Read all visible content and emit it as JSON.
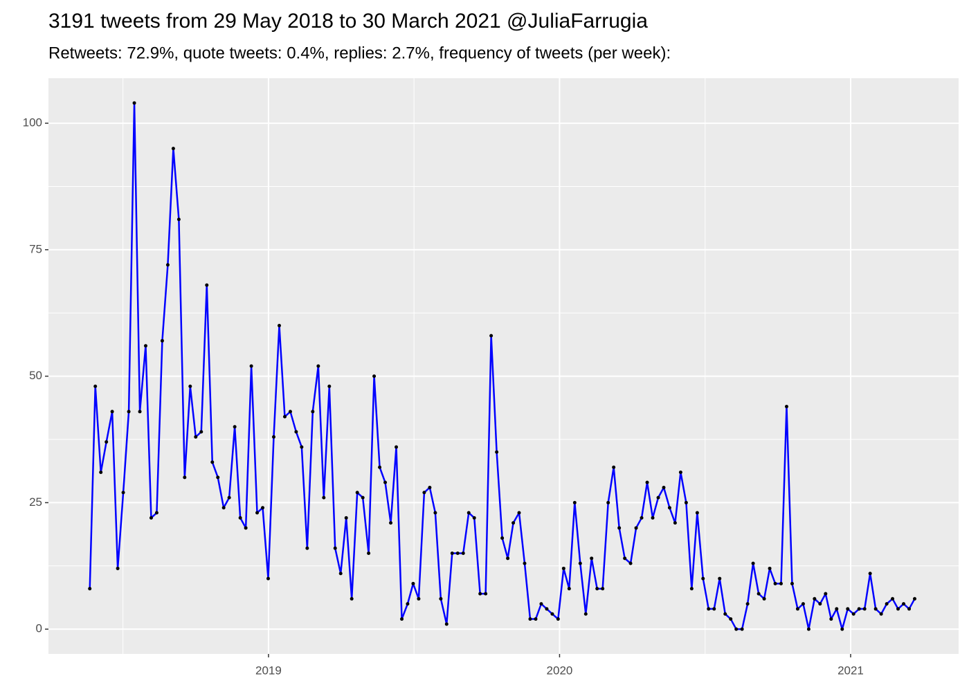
{
  "chart_data": {
    "type": "line",
    "title": "3191 tweets from 29 May 2018 to 30 March 2021 @JuliaFarrugia",
    "subtitle": "Retweets: 72.9%, quote tweets: 0.4%, replies: 2.7%, frequency of tweets (per week):",
    "x": [
      2018.386,
      2018.405,
      2018.424,
      2018.443,
      2018.463,
      2018.482,
      2018.501,
      2018.52,
      2018.539,
      2018.558,
      2018.578,
      2018.597,
      2018.616,
      2018.635,
      2018.654,
      2018.673,
      2018.692,
      2018.712,
      2018.731,
      2018.75,
      2018.769,
      2018.788,
      2018.807,
      2018.826,
      2018.846,
      2018.865,
      2018.884,
      2018.903,
      2018.922,
      2018.941,
      2018.961,
      2018.98,
      2018.999,
      2019.018,
      2019.037,
      2019.056,
      2019.075,
      2019.095,
      2019.114,
      2019.133,
      2019.152,
      2019.171,
      2019.19,
      2019.209,
      2019.229,
      2019.248,
      2019.267,
      2019.286,
      2019.305,
      2019.324,
      2019.344,
      2019.363,
      2019.382,
      2019.401,
      2019.42,
      2019.439,
      2019.458,
      2019.478,
      2019.497,
      2019.516,
      2019.535,
      2019.554,
      2019.573,
      2019.592,
      2019.612,
      2019.631,
      2019.65,
      2019.669,
      2019.688,
      2019.707,
      2019.727,
      2019.746,
      2019.765,
      2019.784,
      2019.803,
      2019.822,
      2019.841,
      2019.861,
      2019.88,
      2019.899,
      2019.918,
      2019.937,
      2019.956,
      2019.975,
      2019.995,
      2020.014,
      2020.033,
      2020.052,
      2020.071,
      2020.09,
      2020.11,
      2020.129,
      2020.148,
      2020.167,
      2020.186,
      2020.205,
      2020.224,
      2020.244,
      2020.263,
      2020.282,
      2020.301,
      2020.32,
      2020.339,
      2020.358,
      2020.378,
      2020.397,
      2020.416,
      2020.435,
      2020.454,
      2020.473,
      2020.493,
      2020.512,
      2020.531,
      2020.55,
      2020.569,
      2020.588,
      2020.607,
      2020.627,
      2020.646,
      2020.665,
      2020.684,
      2020.703,
      2020.722,
      2020.741,
      2020.761,
      2020.78,
      2020.799,
      2020.818,
      2020.837,
      2020.856,
      2020.876,
      2020.895,
      2020.914,
      2020.933,
      2020.952,
      2020.971,
      2020.99,
      2021.01,
      2021.029,
      2021.048,
      2021.067,
      2021.086,
      2021.105,
      2021.124,
      2021.144,
      2021.163,
      2021.182,
      2021.201,
      2021.22
    ],
    "values": [
      8,
      48,
      31,
      37,
      43,
      12,
      27,
      43,
      104,
      43,
      56,
      22,
      23,
      57,
      72,
      95,
      81,
      30,
      48,
      38,
      39,
      68,
      33,
      30,
      24,
      26,
      40,
      22,
      20,
      52,
      23,
      24,
      10,
      38,
      60,
      42,
      43,
      39,
      36,
      16,
      43,
      52,
      26,
      48,
      16,
      11,
      22,
      6,
      27,
      26,
      15,
      50,
      32,
      29,
      21,
      36,
      2,
      5,
      9,
      6,
      27,
      28,
      23,
      6,
      1,
      15,
      15,
      15,
      23,
      22,
      7,
      7,
      58,
      35,
      18,
      14,
      21,
      23,
      13,
      2,
      2,
      5,
      4,
      3,
      2,
      12,
      8,
      25,
      13,
      3,
      14,
      8,
      8,
      25,
      32,
      20,
      14,
      13,
      20,
      22,
      29,
      22,
      26,
      28,
      24,
      21,
      31,
      25,
      8,
      23,
      10,
      4,
      4,
      10,
      3,
      2,
      0,
      0,
      5,
      13,
      7,
      6,
      12,
      9,
      9,
      44,
      9,
      4,
      5,
      0,
      6,
      5,
      7,
      2,
      4,
      0,
      4,
      3,
      4,
      4,
      11,
      4,
      3,
      5,
      6,
      4,
      5,
      4,
      6
    ],
    "color": "#0000ff",
    "marker_color": "#000000",
    "xlim": [
      2018.244,
      2021.371
    ],
    "xticks": [
      2019,
      2020,
      2021
    ],
    "ylim": [
      -4.9,
      108.9
    ],
    "yticks": [
      0,
      25,
      50,
      75,
      100
    ],
    "grid": true
  }
}
